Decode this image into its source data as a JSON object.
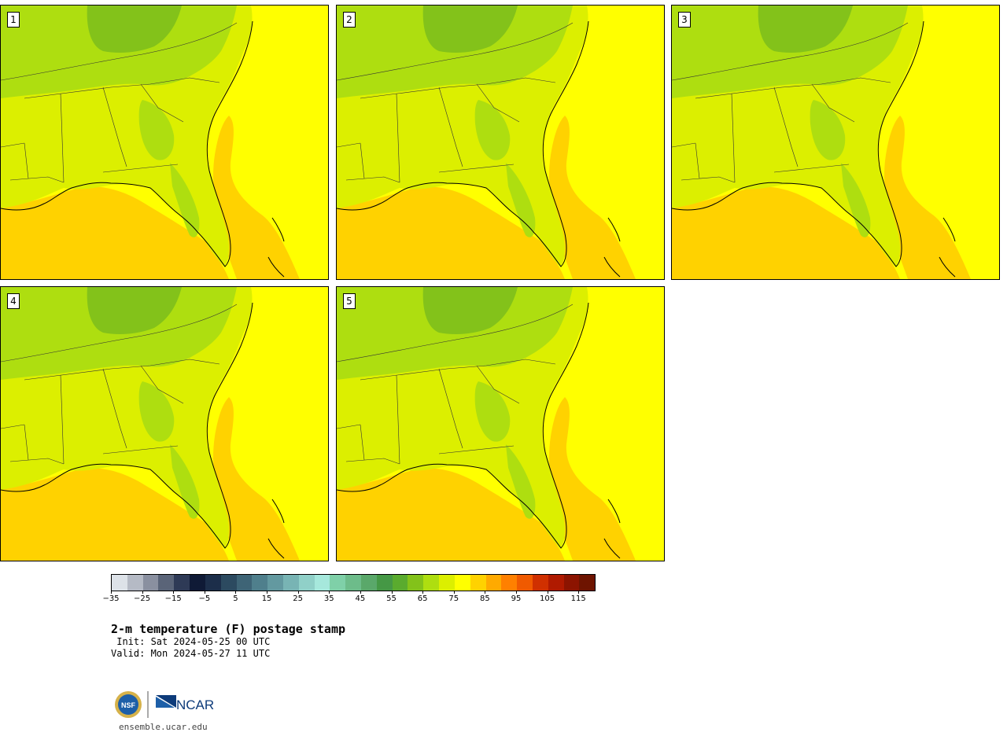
{
  "panels": [
    {
      "label": "1"
    },
    {
      "label": "2"
    },
    {
      "label": "3"
    },
    {
      "label": "4"
    },
    {
      "label": "5"
    }
  ],
  "colorbar": {
    "colors": [
      "#dde2e8",
      "#b5bac5",
      "#8a90a0",
      "#5a6478",
      "#2e3a56",
      "#0f1a36",
      "#1c2e4a",
      "#2c4a60",
      "#3e6476",
      "#4f7f8c",
      "#6399a0",
      "#78b4b4",
      "#90d0c8",
      "#a6e8dc",
      "#7fd0a8",
      "#6dbc8a",
      "#5aa86a",
      "#459845",
      "#5aab2e",
      "#83c21a",
      "#aede10",
      "#dcef00",
      "#ffff00",
      "#ffd200",
      "#ffaa00",
      "#ff8000",
      "#f05a00",
      "#d03000",
      "#b01a00",
      "#8c1400",
      "#6e1400"
    ],
    "tick_labels": [
      "−35",
      "−25",
      "−15",
      "−5",
      "5",
      "15",
      "25",
      "35",
      "45",
      "55",
      "65",
      "75",
      "85",
      "95",
      "105",
      "115"
    ],
    "min": -35,
    "max": 120
  },
  "title": "2-m temperature (F) postage stamp",
  "init": " Init: Sat 2024-05-25 00 UTC",
  "valid": "Valid: Mon 2024-05-27 11 UTC",
  "logos": {
    "nsf": "NSF",
    "ncar": "NCAR"
  },
  "site": "ensemble.ucar.edu"
}
